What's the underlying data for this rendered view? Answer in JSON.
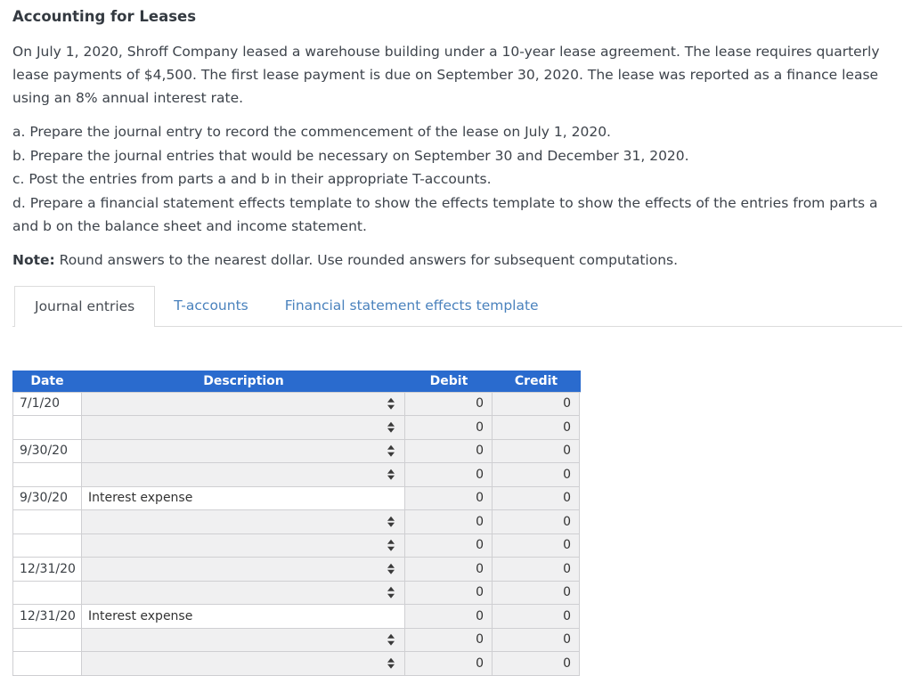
{
  "page": {
    "title": "Accounting for Leases",
    "intro": "On July 1, 2020, Shroff Company leased a warehouse building under a 10-year lease agreement. The lease requires quarterly lease payments of $4,500. The first lease payment is due on September 30, 2020. The lease was reported as a finance lease using an 8% annual interest rate.",
    "requirements": [
      "a. Prepare the journal entry to record the commencement of the lease on July 1, 2020.",
      "b. Prepare the journal entries that would be necessary on September 30 and December 31, 2020.",
      "c. Post the entries from parts a and b in their appropriate T-accounts.",
      "d. Prepare a financial statement effects template to show the effects template to show the effects of the entries from parts a and b on the balance sheet and income statement."
    ],
    "note_label": "Note:",
    "note_text": " Round answers to the nearest dollar. Use rounded answers for subsequent computations."
  },
  "tabs": [
    {
      "label": "Journal entries",
      "active": true
    },
    {
      "label": "T-accounts",
      "active": false
    },
    {
      "label": "Financial statement effects template",
      "active": false
    }
  ],
  "colors": {
    "header_blue": "#2a6bce",
    "link_blue": "#4a82bd",
    "cell_gray": "#f0f0f1",
    "border_gray": "#cfcfd2"
  },
  "icons": {
    "select_arrow": "stacked up/down triangles (collapsed dropdown indicator)"
  },
  "table": {
    "columns": [
      "Date",
      "Description",
      "Debit",
      "Credit"
    ],
    "rows": [
      {
        "date": "7/1/20",
        "description": "",
        "description_type": "select",
        "debit": "0",
        "credit": "0"
      },
      {
        "date": "",
        "description": "",
        "description_type": "select",
        "debit": "0",
        "credit": "0"
      },
      {
        "date": "9/30/20",
        "description": "",
        "description_type": "select",
        "debit": "0",
        "credit": "0"
      },
      {
        "date": "",
        "description": "",
        "description_type": "select",
        "debit": "0",
        "credit": "0"
      },
      {
        "date": "9/30/20",
        "description": "Interest expense",
        "description_type": "text",
        "debit": "0",
        "credit": "0"
      },
      {
        "date": "",
        "description": "",
        "description_type": "select",
        "debit": "0",
        "credit": "0"
      },
      {
        "date": "",
        "description": "",
        "description_type": "select",
        "debit": "0",
        "credit": "0"
      },
      {
        "date": "12/31/20",
        "description": "",
        "description_type": "select",
        "debit": "0",
        "credit": "0"
      },
      {
        "date": "",
        "description": "",
        "description_type": "select",
        "debit": "0",
        "credit": "0"
      },
      {
        "date": "12/31/20",
        "description": "Interest expense",
        "description_type": "text",
        "debit": "0",
        "credit": "0"
      },
      {
        "date": "",
        "description": "",
        "description_type": "select",
        "debit": "0",
        "credit": "0"
      },
      {
        "date": "",
        "description": "",
        "description_type": "select",
        "debit": "0",
        "credit": "0"
      }
    ]
  }
}
